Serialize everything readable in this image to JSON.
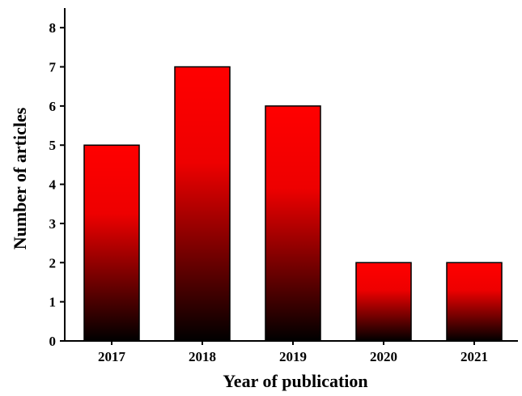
{
  "chart_data": {
    "type": "bar",
    "categories": [
      "2017",
      "2018",
      "2019",
      "2020",
      "2021"
    ],
    "values": [
      5,
      7,
      6,
      2,
      2
    ],
    "title": "",
    "xlabel": "Year of publication",
    "ylabel": "Number of articles",
    "ylim": [
      0,
      8.5
    ],
    "yticks": [
      0,
      1,
      2,
      3,
      4,
      5,
      6,
      7,
      8
    ],
    "grid": false,
    "legend": "none",
    "colors": {
      "bar_top": "#ff0000",
      "bar_bottom": "#000000",
      "axis": "#000000"
    }
  }
}
